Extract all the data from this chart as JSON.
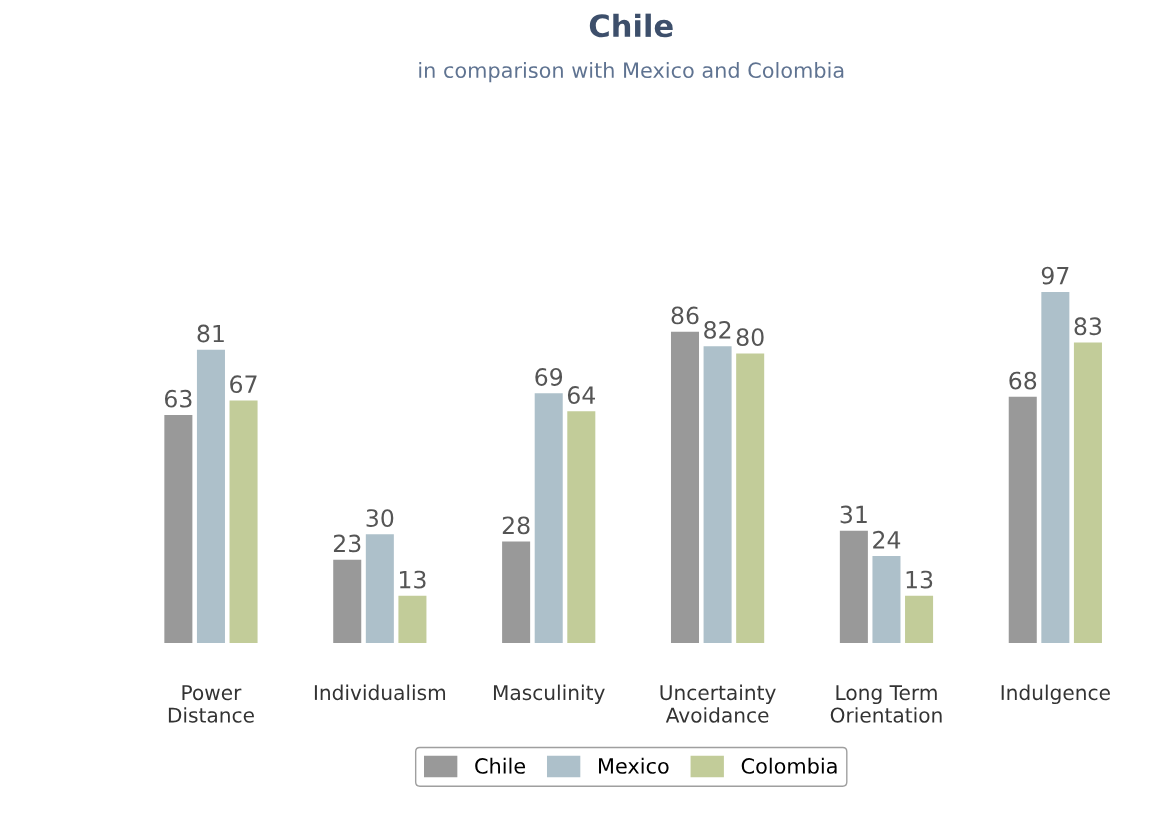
{
  "chart_data": {
    "type": "bar",
    "title": "Chile",
    "subtitle": "in comparison with Mexico and Colombia",
    "categories": [
      "Power\nDistance",
      "Individualism",
      "Masculinity",
      "Uncertainty\nAvoidance",
      "Long Term\nOrientation",
      "Indulgence"
    ],
    "series": [
      {
        "name": "Chile",
        "color": "#999999",
        "values": [
          63,
          23,
          28,
          86,
          31,
          68
        ]
      },
      {
        "name": "Mexico",
        "color": "#adc0ca",
        "values": [
          81,
          30,
          69,
          82,
          24,
          97
        ]
      },
      {
        "name": "Colombia",
        "color": "#c2cc99",
        "values": [
          67,
          13,
          64,
          80,
          13,
          83
        ]
      }
    ],
    "data_labels": true,
    "legend": "bottom",
    "grid": false
  }
}
